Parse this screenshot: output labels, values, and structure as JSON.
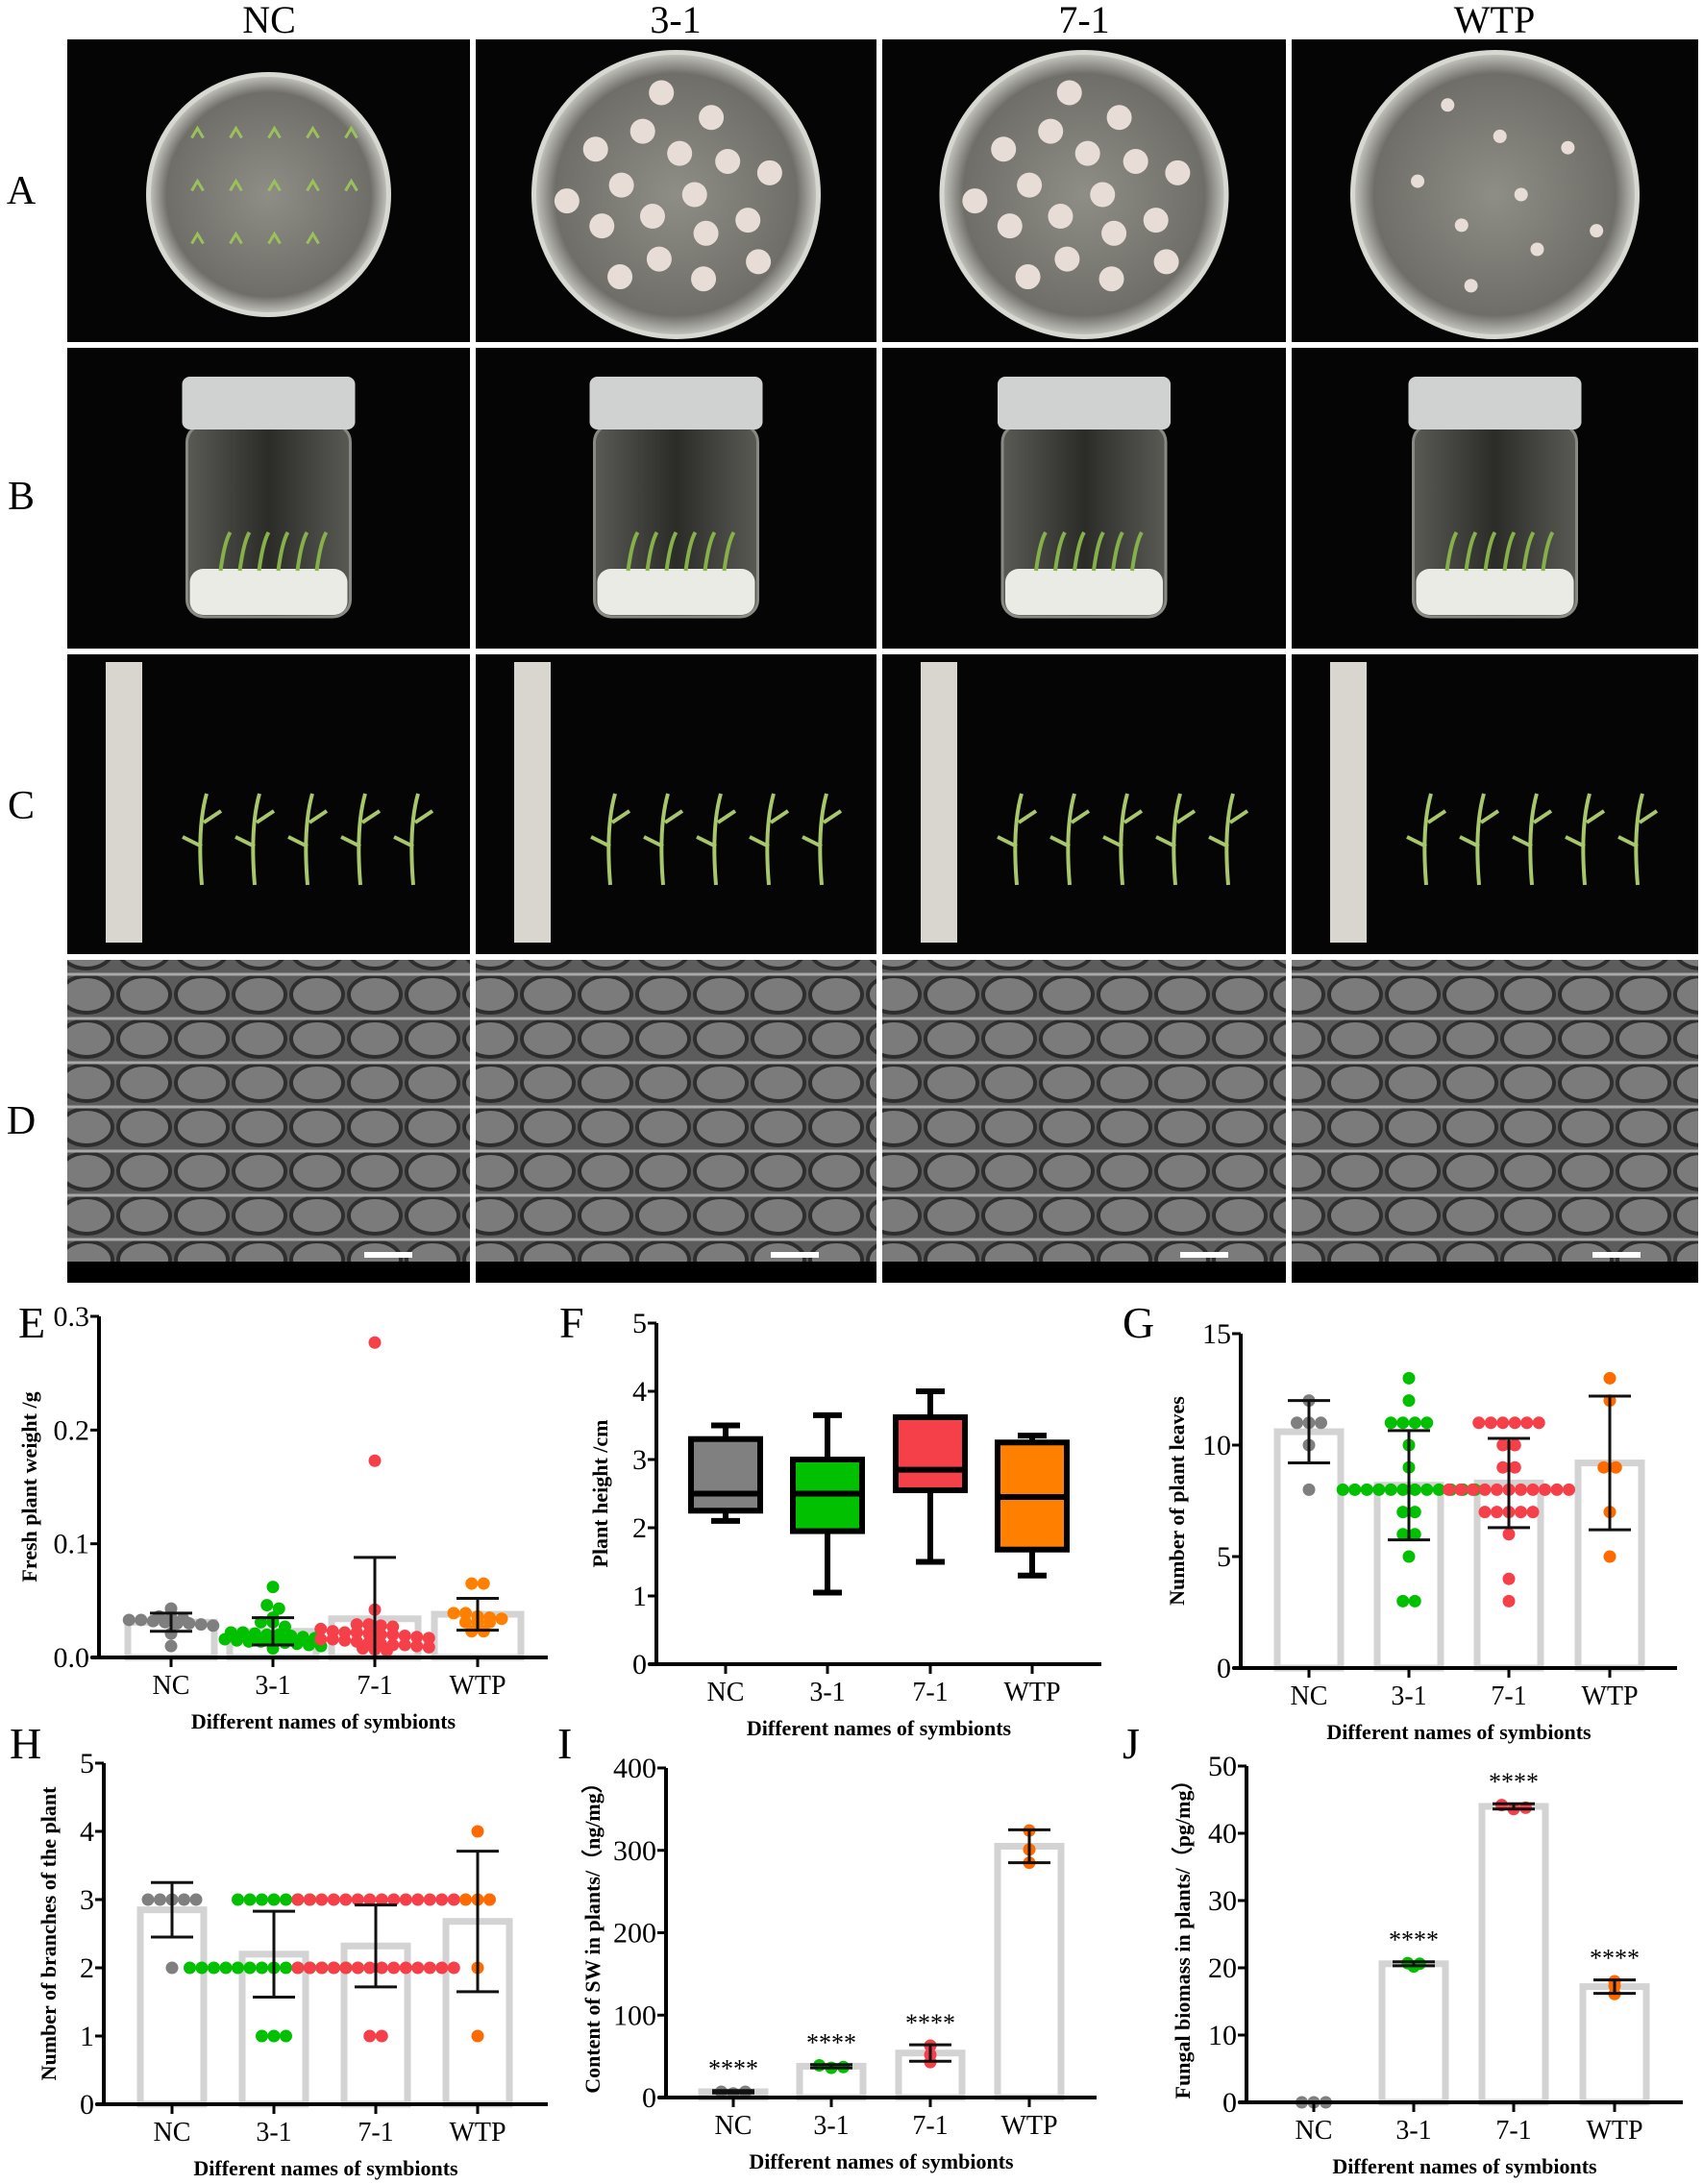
{
  "figure": {
    "column_headers": [
      "NC",
      "3-1",
      "7-1",
      "WTP"
    ],
    "row_labels": [
      "A",
      "B",
      "C",
      "D"
    ]
  },
  "chart_data": [
    {
      "panel": "E",
      "type": "bar-scatter",
      "categories": [
        "NC",
        "3-1",
        "7-1",
        "WTP"
      ],
      "xlabel": "Different names of symbionts",
      "ylabel": "Fresh plant weight /g",
      "ylim": [
        0,
        0.3
      ],
      "yticks": [
        "0.0",
        "0.1",
        "0.2",
        "0.3"
      ],
      "ytick_values": [
        0,
        0.1,
        0.2,
        0.3
      ],
      "colors": [
        "#7f7f7f",
        "#00c000",
        "#f5404a",
        "#ff7f00"
      ],
      "means": [
        0.031,
        0.023,
        0.034,
        0.038
      ],
      "sd": [
        0.008,
        0.012,
        0.054,
        0.014
      ],
      "points": [
        [
          0.043,
          0.036,
          0.035,
          0.034,
          0.033,
          0.033,
          0.032,
          0.031,
          0.03,
          0.03,
          0.029,
          0.028,
          0.021,
          0.01
        ],
        [
          0.062,
          0.046,
          0.043,
          0.035,
          0.031,
          0.031,
          0.027,
          0.022,
          0.022,
          0.021,
          0.02,
          0.02,
          0.019,
          0.018,
          0.017,
          0.016,
          0.015,
          0.014,
          0.014,
          0.013,
          0.013,
          0.012,
          0.011,
          0.01,
          0.008
        ],
        [
          0.277,
          0.173,
          0.042,
          0.029,
          0.029,
          0.028,
          0.027,
          0.025,
          0.023,
          0.022,
          0.022,
          0.021,
          0.02,
          0.02,
          0.019,
          0.018,
          0.017,
          0.016,
          0.016,
          0.015,
          0.014,
          0.013,
          0.012,
          0.011,
          0.011,
          0.01,
          0.009,
          0.008,
          0.007,
          0.006
        ],
        [
          0.065,
          0.065,
          0.039,
          0.039,
          0.036,
          0.035,
          0.034,
          0.031,
          0.031,
          0.031,
          0.023,
          0.023
        ]
      ]
    },
    {
      "panel": "F",
      "type": "box",
      "categories": [
        "NC",
        "3-1",
        "7-1",
        "WTP"
      ],
      "xlabel": "Different names of symbionts",
      "ylabel": "Plant height /cm",
      "ylim": [
        0,
        5
      ],
      "yticks": [
        "0",
        "1",
        "2",
        "3",
        "4",
        "5"
      ],
      "ytick_values": [
        0,
        1,
        2,
        3,
        4,
        5
      ],
      "colors": [
        "#808080",
        "#00c000",
        "#f5404a",
        "#ff8000"
      ],
      "boxes": [
        {
          "min": 2.1,
          "q1": 2.25,
          "median": 2.5,
          "q3": 3.3,
          "max": 3.5
        },
        {
          "min": 1.05,
          "q1": 1.95,
          "median": 2.5,
          "q3": 3.0,
          "max": 3.65
        },
        {
          "min": 1.5,
          "q1": 2.55,
          "median": 2.85,
          "q3": 3.62,
          "max": 4.0
        },
        {
          "min": 1.3,
          "q1": 1.68,
          "median": 2.45,
          "q3": 3.25,
          "max": 3.35
        }
      ]
    },
    {
      "panel": "G",
      "type": "bar-scatter",
      "categories": [
        "NC",
        "3-1",
        "7-1",
        "WTP"
      ],
      "xlabel": "Different names of symbionts",
      "ylabel": "Number of plant leaves",
      "ylim": [
        0,
        15
      ],
      "yticks": [
        "0",
        "5",
        "10",
        "15"
      ],
      "ytick_values": [
        0,
        5,
        10,
        15
      ],
      "colors": [
        "#7f7f7f",
        "#00c000",
        "#f5404a",
        "#ff6a00"
      ],
      "means": [
        10.6,
        8.2,
        8.3,
        9.2
      ],
      "sd": [
        1.4,
        2.45,
        2.0,
        3.0
      ],
      "points": [
        [
          12,
          11,
          11,
          11,
          10,
          8
        ],
        [
          13,
          12,
          11,
          11,
          11,
          11,
          10,
          9,
          8,
          8,
          8,
          8,
          8,
          8,
          8,
          8,
          8,
          8,
          8,
          8,
          7,
          7,
          6,
          6,
          5,
          3,
          3
        ],
        [
          11,
          11,
          11,
          11,
          11,
          11,
          10,
          10,
          9,
          9,
          8,
          8,
          8,
          8,
          8,
          8,
          8,
          8,
          8,
          8,
          8,
          7,
          7,
          7,
          7,
          7,
          6,
          4,
          3
        ],
        [
          13,
          12,
          9,
          9,
          7,
          5
        ]
      ]
    },
    {
      "panel": "H",
      "type": "bar-scatter",
      "categories": [
        "NC",
        "3-1",
        "7-1",
        "WTP"
      ],
      "xlabel": "Different names of symbionts",
      "ylabel": "Number of branches of the plant",
      "ylim": [
        0,
        5
      ],
      "yticks": [
        "0",
        "1",
        "2",
        "3",
        "4",
        "5"
      ],
      "ytick_values": [
        0,
        1,
        2,
        3,
        4,
        5
      ],
      "colors": [
        "#7f7f7f",
        "#00c000",
        "#f5404a",
        "#ff6a00"
      ],
      "means": [
        2.85,
        2.2,
        2.32,
        2.68
      ],
      "sd": [
        0.4,
        0.63,
        0.6,
        1.03
      ],
      "points": [
        [
          3,
          3,
          3,
          3,
          3,
          2
        ],
        [
          3,
          3,
          3,
          3,
          3,
          3,
          3,
          2,
          2,
          2,
          2,
          2,
          2,
          2,
          2,
          2,
          2,
          2,
          2,
          2,
          2,
          2,
          1,
          1,
          1
        ],
        [
          3,
          3,
          3,
          3,
          3,
          3,
          3,
          3,
          3,
          3,
          3,
          3,
          3,
          3,
          2,
          2,
          2,
          2,
          2,
          2,
          2,
          2,
          2,
          2,
          2,
          2,
          2,
          2,
          1,
          1
        ],
        [
          4,
          3,
          3,
          3,
          2,
          1
        ]
      ]
    },
    {
      "panel": "I",
      "type": "bar-scatter",
      "categories": [
        "NC",
        "3-1",
        "7-1",
        "WTP"
      ],
      "xlabel": "Different names of symbionts",
      "ylabel": "Content of SW in plants/（ng/mg）",
      "ylim": [
        0,
        400
      ],
      "yticks": [
        "0",
        "100",
        "200",
        "300",
        "400"
      ],
      "ytick_values": [
        0,
        100,
        200,
        300,
        400
      ],
      "colors": [
        "#7f7f7f",
        "#00c000",
        "#f5404a",
        "#ff6a00"
      ],
      "means": [
        7,
        38,
        54,
        305
      ],
      "sd": [
        1.5,
        2,
        10,
        20
      ],
      "points": [
        [
          7,
          5,
          7
        ],
        [
          39,
          36,
          37
        ],
        [
          63,
          52,
          43
        ],
        [
          324,
          301,
          285
        ]
      ],
      "significance": [
        "****",
        "****",
        "****",
        ""
      ]
    },
    {
      "panel": "J",
      "type": "bar-scatter",
      "categories": [
        "NC",
        "3-1",
        "7-1",
        "WTP"
      ],
      "xlabel": "Different names of symbionts",
      "ylabel": "Fungal biomass in plants/（pg/mg）",
      "ylim": [
        0,
        50
      ],
      "yticks": [
        "0",
        "10",
        "20",
        "30",
        "40",
        "50"
      ],
      "ytick_values": [
        0,
        10,
        20,
        30,
        40,
        50
      ],
      "colors": [
        "#7f7f7f",
        "#00c000",
        "#f5404a",
        "#ff6a00"
      ],
      "means": [
        0,
        20.6,
        44.0,
        17.2
      ],
      "sd": [
        0,
        0.3,
        0.4,
        1.0
      ],
      "points": [
        [
          0,
          0,
          0
        ],
        [
          20.7,
          20.2,
          20.6
        ],
        [
          44.2,
          43.6,
          43.8
        ],
        [
          18.0,
          16.1,
          17.3
        ]
      ],
      "significance": [
        "",
        "****",
        "****",
        "****"
      ]
    }
  ]
}
